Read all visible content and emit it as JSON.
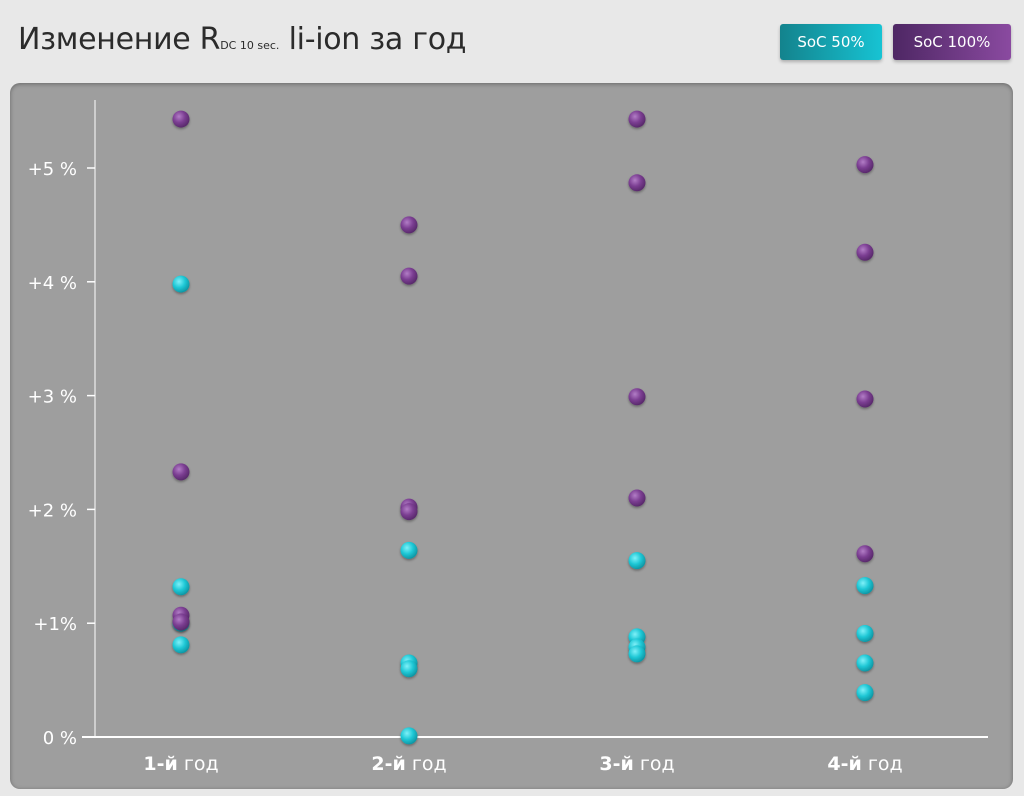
{
  "title": {
    "main": "Изменение R",
    "subscript": "DC 10 sec.",
    "rest": " li-ion за год"
  },
  "legend": {
    "soc50_label": "SoC 50%",
    "soc100_label": "SoC 100%"
  },
  "colors": {
    "soc50": "#1fc8d6",
    "soc100": "#7b3e92",
    "panel": "#9e9e9e",
    "axis": "#ffffff"
  },
  "chart_data": {
    "type": "scatter",
    "categories": [
      {
        "bold": "1-й",
        "rest": " год"
      },
      {
        "bold": "2-й",
        "rest": " год"
      },
      {
        "bold": "3-й",
        "rest": " год"
      },
      {
        "bold": "4-й",
        "rest": " год"
      }
    ],
    "y_ticks": [
      "0 %",
      "+1%",
      "+2 %",
      "+3 %",
      "+4 %",
      "+5 %"
    ],
    "ylim": [
      0,
      5.6
    ],
    "ylabel": "",
    "xlabel": "",
    "grid": false,
    "legend_position": "top-right",
    "series": [
      {
        "name": "SoC 50%",
        "color": "#1fc8d6",
        "points": [
          {
            "cat": 0,
            "y": 3.98
          },
          {
            "cat": 0,
            "y": 1.32
          },
          {
            "cat": 0,
            "y": 1.0
          },
          {
            "cat": 0,
            "y": 0.81
          },
          {
            "cat": 1,
            "y": 1.64
          },
          {
            "cat": 1,
            "y": 0.65
          },
          {
            "cat": 1,
            "y": 0.6
          },
          {
            "cat": 1,
            "y": 0.01
          },
          {
            "cat": 2,
            "y": 1.55
          },
          {
            "cat": 2,
            "y": 0.88
          },
          {
            "cat": 2,
            "y": 0.79
          },
          {
            "cat": 2,
            "y": 0.73
          },
          {
            "cat": 3,
            "y": 1.33
          },
          {
            "cat": 3,
            "y": 0.91
          },
          {
            "cat": 3,
            "y": 0.65
          },
          {
            "cat": 3,
            "y": 0.39
          }
        ]
      },
      {
        "name": "SoC 100%",
        "color": "#7b3e92",
        "points": [
          {
            "cat": 0,
            "y": 5.43
          },
          {
            "cat": 0,
            "y": 2.33
          },
          {
            "cat": 0,
            "y": 1.07
          },
          {
            "cat": 0,
            "y": 1.01
          },
          {
            "cat": 1,
            "y": 4.5
          },
          {
            "cat": 1,
            "y": 4.05
          },
          {
            "cat": 1,
            "y": 2.02
          },
          {
            "cat": 1,
            "y": 1.98
          },
          {
            "cat": 2,
            "y": 5.43
          },
          {
            "cat": 2,
            "y": 4.87
          },
          {
            "cat": 2,
            "y": 2.99
          },
          {
            "cat": 2,
            "y": 2.1
          },
          {
            "cat": 3,
            "y": 5.03
          },
          {
            "cat": 3,
            "y": 4.26
          },
          {
            "cat": 3,
            "y": 2.97
          },
          {
            "cat": 3,
            "y": 1.61
          }
        ]
      }
    ]
  }
}
